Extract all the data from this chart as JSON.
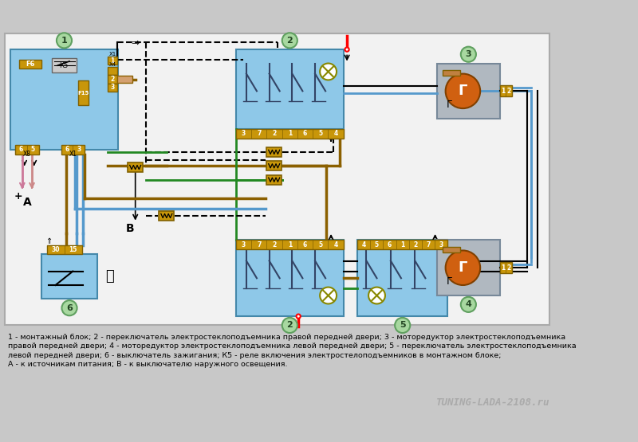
{
  "bg_color": "#c8c8c8",
  "diagram_bg": "#f0f0f0",
  "blue_fill": "#8ec8e8",
  "blue_fill2": "#a8d4e8",
  "yellow_fill": "#d4a000",
  "orange_fill": "#d06010",
  "gray_fill": "#8899aa",
  "caption_lines": [
    "1 - монтажный блок; 2 - переключатель электростеклоподъемника правой передней двери; 3 - моторедуктор электростеклоподъемника",
    "правой передней двери; 4 - моторедуктор электростеклоподъемника левой передней двери; 5 - переключатель электростеклоподъемника",
    "левой передней двери; 6 - выключатель зажигания; К5 - реле включения электростелоподъемников в монтажном блоке;",
    "А - к источникам питания; В - к выключателю наружного освещения."
  ],
  "watermark": "TUNING-LADA-2108.ru"
}
